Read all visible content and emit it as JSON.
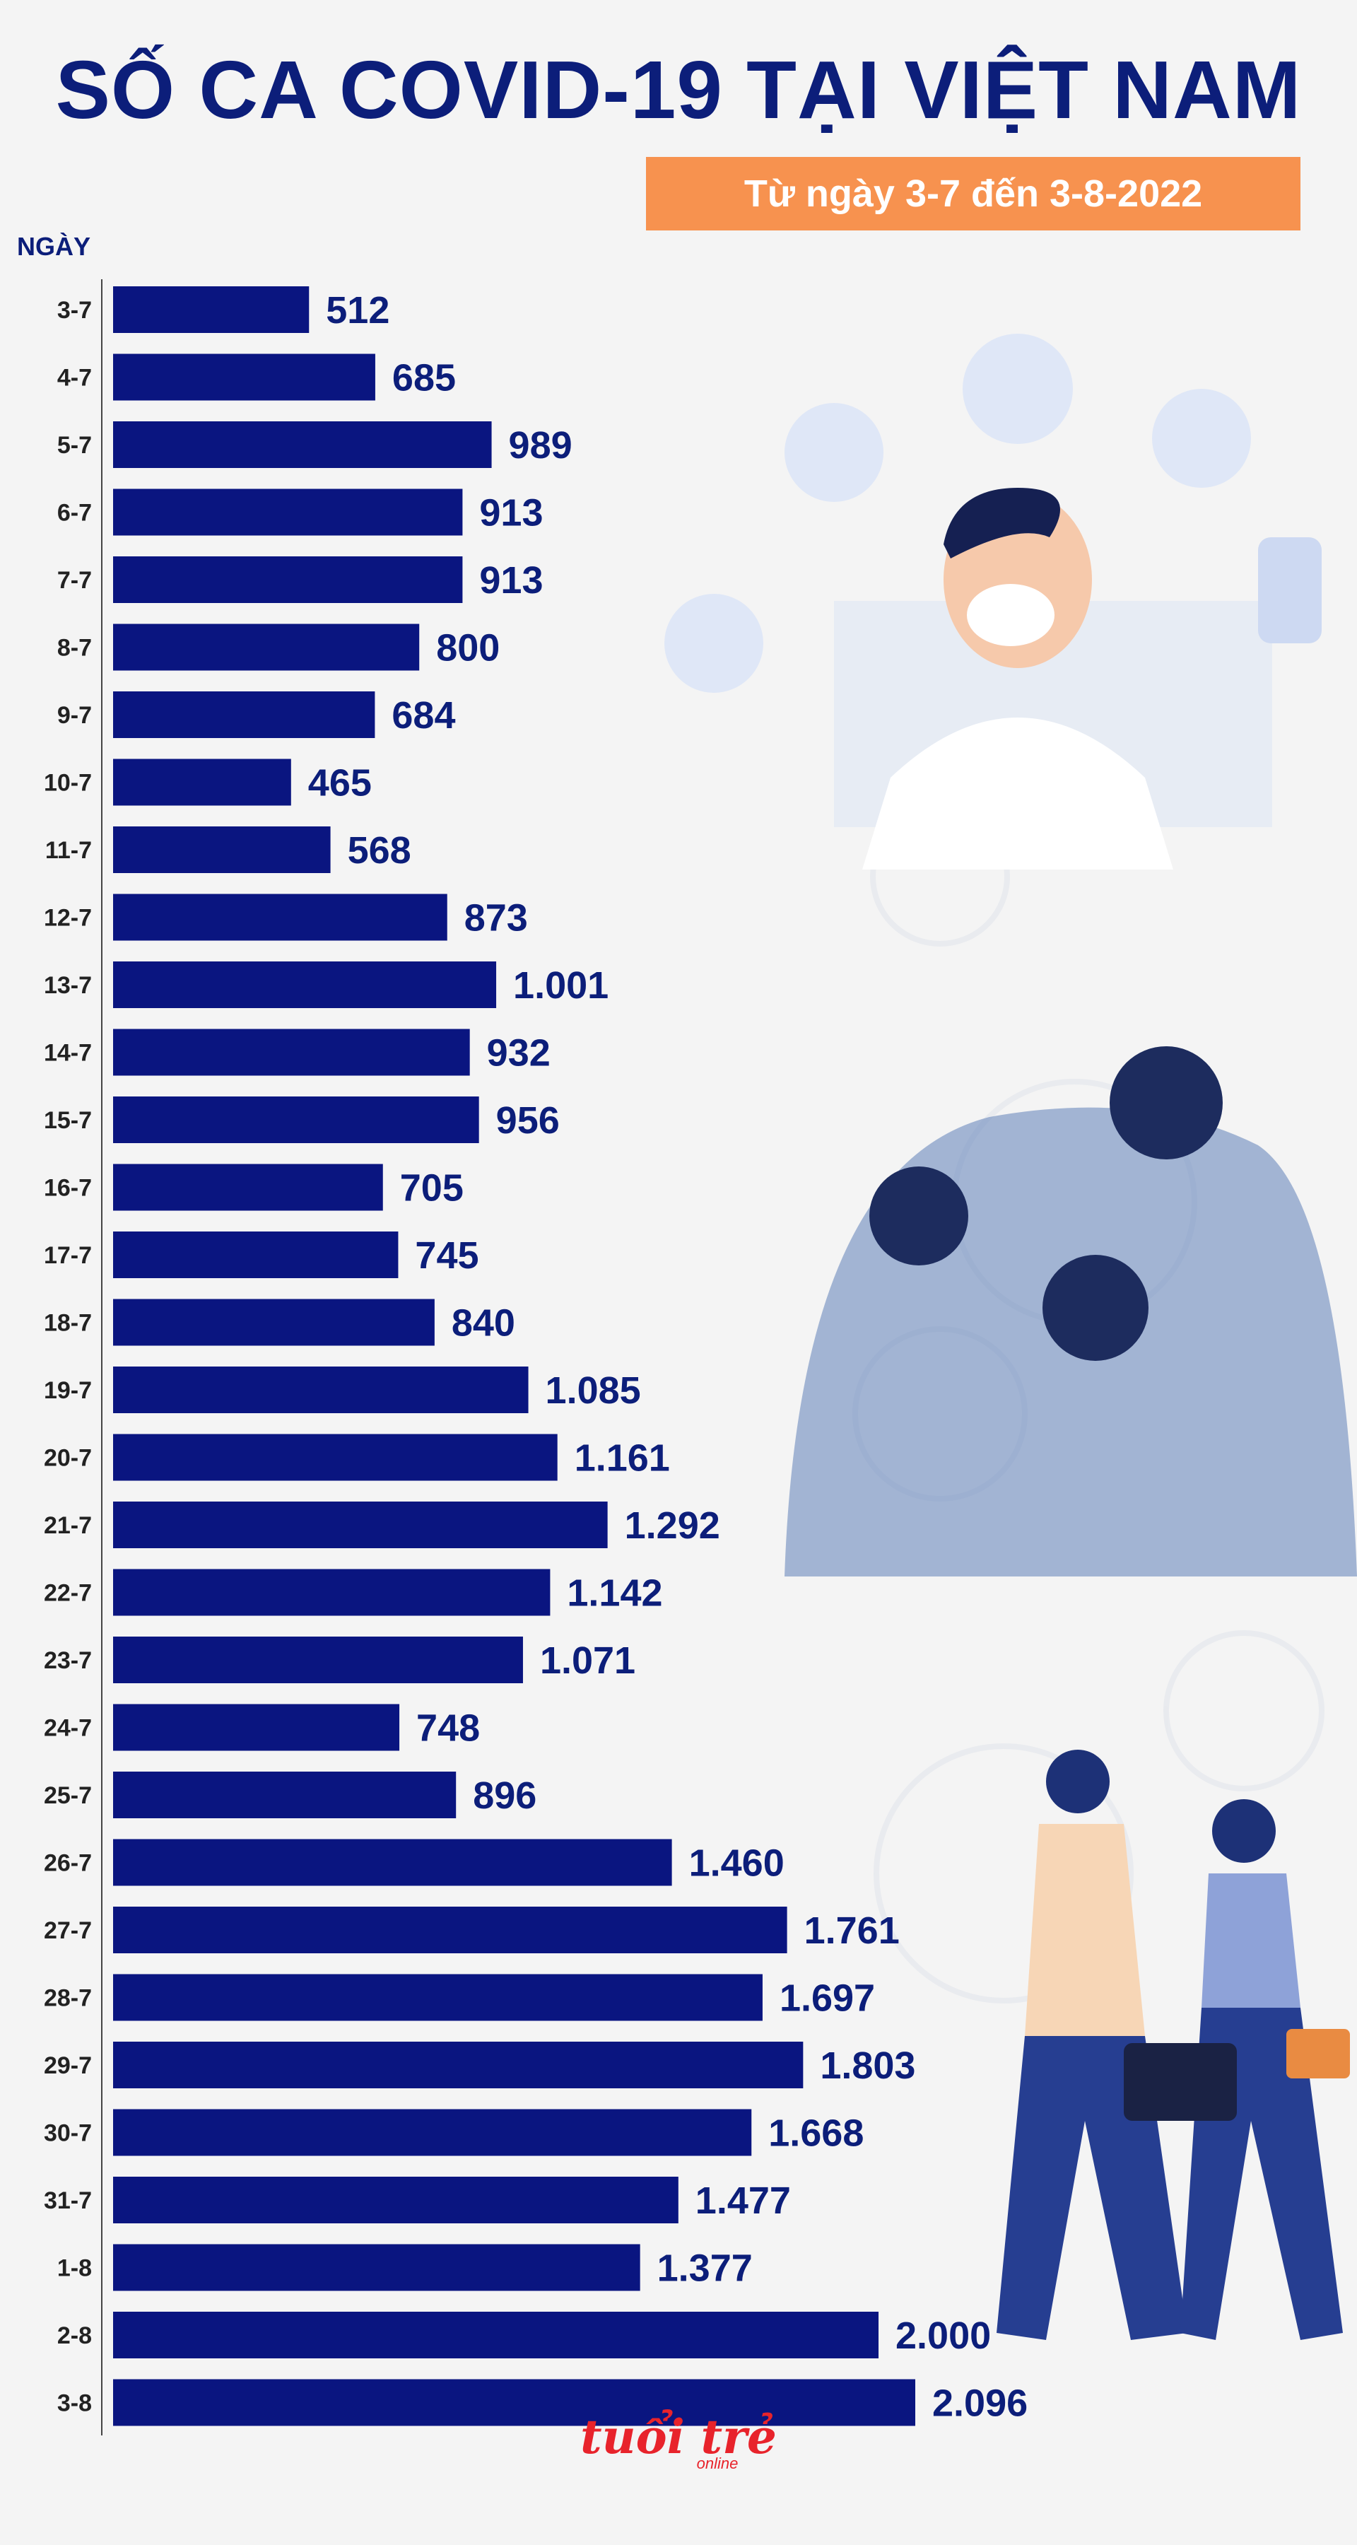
{
  "header": {
    "title": "SỐ CA COVID-19 TẠI VIỆT NAM",
    "subtitle": "Từ ngày 3-7 đến 3-8-2022"
  },
  "footer": {
    "logo_text": "tuổi trẻ",
    "logo_sub": "online"
  },
  "chart_data": {
    "type": "bar",
    "orientation": "horizontal",
    "title": "SỐ CA COVID-19 TẠI VIỆT NAM",
    "subtitle": "Từ ngày 3-7 đến 3-8-2022",
    "ylabel": "NGÀY",
    "xlabel": "",
    "categories": [
      "3-7",
      "4-7",
      "5-7",
      "6-7",
      "7-7",
      "8-7",
      "9-7",
      "10-7",
      "11-7",
      "12-7",
      "13-7",
      "14-7",
      "15-7",
      "16-7",
      "17-7",
      "18-7",
      "19-7",
      "20-7",
      "21-7",
      "22-7",
      "23-7",
      "24-7",
      "25-7",
      "26-7",
      "27-7",
      "28-7",
      "29-7",
      "30-7",
      "31-7",
      "1-8",
      "2-8",
      "3-8"
    ],
    "values": [
      512,
      685,
      989,
      913,
      913,
      800,
      684,
      465,
      568,
      873,
      1001,
      932,
      956,
      705,
      745,
      840,
      1085,
      1161,
      1292,
      1142,
      1071,
      748,
      896,
      1460,
      1761,
      1697,
      1803,
      1668,
      1477,
      1377,
      2000,
      2096
    ],
    "value_labels": [
      "512",
      "685",
      "989",
      "913",
      "913",
      "800",
      "684",
      "465",
      "568",
      "873",
      "1.001",
      "932",
      "956",
      "705",
      "745",
      "840",
      "1.085",
      "1.161",
      "1.292",
      "1.142",
      "1.071",
      "748",
      "896",
      "1.460",
      "1.761",
      "1.697",
      "1.803",
      "1.668",
      "1.477",
      "1.377",
      "2.000",
      "2.096"
    ],
    "xlim": [
      0,
      2096
    ],
    "grid": false,
    "legend": "none",
    "bar_color": "#0a1580",
    "label_color": "#0c1e7a"
  }
}
